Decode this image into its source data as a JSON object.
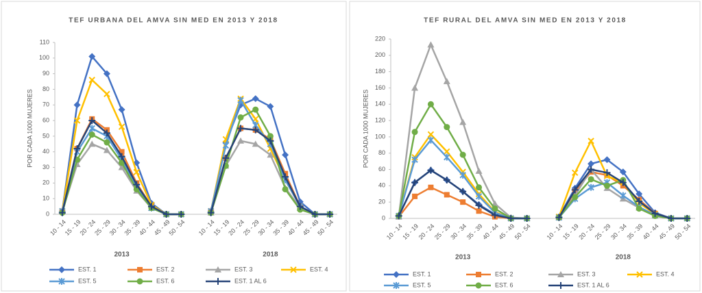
{
  "chart_data": [
    {
      "type": "line",
      "title": "TEF URBANA DEL AMVA SIN MED EN 2013 Y 2018",
      "y_label": "POR CADA 1000 MUJERES",
      "categories": [
        "10 - 14",
        "15 - 19",
        "20 - 24",
        "25 - 29",
        "30 - 34",
        "35 - 39",
        "40 - 44",
        "45 - 49",
        "50 - 54",
        null,
        "10 - 14",
        "15 - 19",
        "20 - 24",
        "25 - 29",
        "30 - 34",
        "35 - 39",
        "40 - 44",
        "45 - 49",
        "50 - 54"
      ],
      "group_labels": [
        "2013",
        "2018"
      ],
      "ylim": [
        0,
        110
      ],
      "yticks": [
        0,
        10,
        20,
        30,
        40,
        50,
        60,
        70,
        80,
        90,
        100,
        110
      ],
      "legend": "bottom",
      "series": [
        {
          "name": "EST. 1",
          "color": "#4472c4",
          "marker": "diamond",
          "values": [
            2,
            70,
            101,
            90,
            67,
            33,
            7,
            0,
            0,
            null,
            2,
            46,
            70,
            74,
            69,
            38,
            8,
            0,
            0
          ]
        },
        {
          "name": "EST. 2",
          "color": "#ed7d31",
          "marker": "square",
          "values": [
            2,
            42,
            61,
            54,
            40,
            20,
            5,
            0,
            0,
            null,
            2,
            36,
            55,
            54,
            48,
            26,
            5,
            0,
            0
          ]
        },
        {
          "name": "EST. 3",
          "color": "#a5a5a5",
          "marker": "triangle",
          "values": [
            2,
            32,
            45,
            41,
            30,
            15,
            4,
            0,
            0,
            null,
            1,
            31,
            47,
            45,
            38,
            17,
            4,
            0,
            0
          ]
        },
        {
          "name": "EST. 4",
          "color": "#ffc000",
          "marker": "x",
          "values": [
            2,
            60,
            86,
            77,
            56,
            27,
            6,
            0,
            0,
            null,
            2,
            48,
            74,
            61,
            42,
            22,
            5,
            0,
            0
          ]
        },
        {
          "name": "EST. 5",
          "color": "#5b9bd5",
          "marker": "star",
          "values": [
            2,
            40,
            55,
            50,
            35,
            17,
            4,
            0,
            0,
            null,
            2,
            44,
            73,
            57,
            45,
            22,
            5,
            0,
            0
          ]
        },
        {
          "name": "EST. 6",
          "color": "#70ad47",
          "marker": "circle",
          "values": [
            1,
            35,
            51,
            46,
            33,
            16,
            4,
            0,
            0,
            null,
            1,
            31,
            62,
            67,
            50,
            16,
            3,
            0,
            0
          ]
        },
        {
          "name": "EST. 1 AL 6",
          "color": "#264478",
          "marker": "plus",
          "values": [
            1,
            42,
            60,
            52,
            37,
            19,
            5,
            0,
            0,
            null,
            1,
            36,
            55,
            54,
            47,
            24,
            5,
            0,
            0
          ]
        }
      ]
    },
    {
      "type": "line",
      "title": "TEF RURAL DEL AMVA SIN MED EN 2013 Y 2018",
      "y_label": "POR CADA 1000 MUJERES",
      "categories": [
        "10 - 14",
        "15 - 19",
        "20 - 24",
        "25 - 29",
        "30 - 34",
        "35 - 39",
        "40 - 44",
        "45 - 49",
        "50 - 54",
        null,
        "10 - 14",
        "15 - 19",
        "20 - 24",
        "25 - 29",
        "30 - 34",
        "35 - 39",
        "40 - 44",
        "45 - 49",
        "50 - 54"
      ],
      "group_labels": [
        "2013",
        "2018"
      ],
      "ylim": [
        0,
        220
      ],
      "yticks": [
        0,
        20,
        40,
        60,
        80,
        100,
        120,
        140,
        160,
        180,
        200,
        220
      ],
      "legend": "bottom",
      "series": [
        {
          "name": "EST. 1",
          "color": "#4472c4",
          "marker": "diamond",
          "values": [
            3,
            44,
            59,
            47,
            33,
            17,
            5,
            0,
            0,
            null,
            2,
            37,
            67,
            72,
            57,
            30,
            7,
            0,
            0
          ]
        },
        {
          "name": "EST. 2",
          "color": "#ed7d31",
          "marker": "square",
          "values": [
            2,
            27,
            38,
            29,
            20,
            9,
            2,
            0,
            0,
            null,
            1,
            33,
            57,
            53,
            40,
            23,
            6,
            0,
            0
          ]
        },
        {
          "name": "EST. 3",
          "color": "#a5a5a5",
          "marker": "triangle",
          "values": [
            2,
            160,
            213,
            168,
            118,
            58,
            18,
            1,
            0,
            null,
            1,
            28,
            60,
            37,
            24,
            13,
            3,
            0,
            0
          ]
        },
        {
          "name": "EST. 4",
          "color": "#ffc000",
          "marker": "x",
          "values": [
            3,
            75,
            103,
            82,
            57,
            30,
            8,
            0,
            0,
            null,
            2,
            56,
            95,
            52,
            44,
            19,
            5,
            0,
            0
          ]
        },
        {
          "name": "EST. 5",
          "color": "#5b9bd5",
          "marker": "star",
          "values": [
            3,
            72,
            96,
            75,
            53,
            27,
            7,
            0,
            0,
            null,
            1,
            24,
            38,
            44,
            28,
            14,
            4,
            0,
            0
          ]
        },
        {
          "name": "EST. 6",
          "color": "#70ad47",
          "marker": "circle",
          "values": [
            3,
            106,
            140,
            112,
            78,
            38,
            12,
            0,
            0,
            null,
            1,
            26,
            48,
            40,
            47,
            12,
            3,
            0,
            0
          ]
        },
        {
          "name": "EST. 1 AL 6",
          "color": "#264478",
          "marker": "plus",
          "values": [
            3,
            44,
            59,
            47,
            33,
            16,
            4,
            0,
            0,
            null,
            1,
            35,
            60,
            56,
            44,
            21,
            6,
            0,
            0
          ]
        }
      ]
    }
  ]
}
